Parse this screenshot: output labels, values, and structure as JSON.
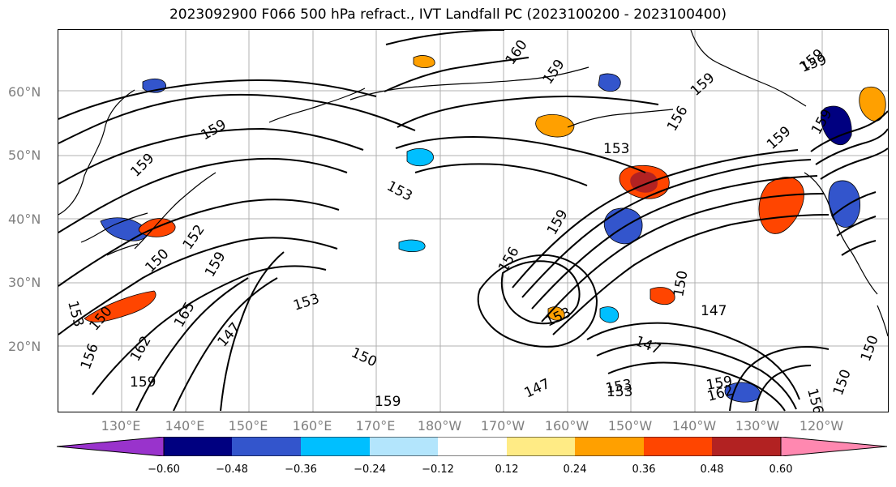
{
  "title": "2023092900 F066 500 hPa refract., IVT Landfall PC (2023100200 - 2023100400)",
  "map": {
    "type": "synoptic-map",
    "region": "North Pacific",
    "field_contours": "500 hPa refractivity",
    "field_shading": "IVT Landfall PC",
    "lat_labels": [
      "60°N",
      "50°N",
      "40°N",
      "30°N",
      "20°N"
    ],
    "lon_labels": [
      "130°E",
      "140°E",
      "150°E",
      "160°E",
      "170°E",
      "180°W",
      "170°W",
      "160°W",
      "150°W",
      "140°W",
      "130°W",
      "120°W"
    ],
    "contour_labels": [
      "160",
      "159",
      "159",
      "159",
      "159",
      "159",
      "156",
      "159",
      "153",
      "153",
      "159",
      "156",
      "150",
      "153",
      "152",
      "159",
      "153",
      "165",
      "150",
      "162",
      "156",
      "159",
      "147",
      "153",
      "150",
      "153",
      "147",
      "156",
      "147",
      "153",
      "159",
      "150",
      "150",
      "159",
      "159",
      "162",
      "147",
      "159",
      "150"
    ]
  },
  "colorbar": {
    "tick_labels": [
      "−0.60",
      "−0.48",
      "−0.36",
      "−0.24",
      "−0.12",
      "0.12",
      "0.24",
      "0.36",
      "0.48",
      "0.60"
    ],
    "colors": [
      "#9933cc",
      "#000080",
      "#3355cc",
      "#00bfff",
      "#b3e5fc",
      "#ffffff",
      "#ffeb85",
      "#ffa000",
      "#ff4500",
      "#b22222",
      "#ff88b0"
    ]
  },
  "chart_data": {
    "type": "heatmap",
    "title": "2023092900 F066 500 hPa refract., IVT Landfall PC (2023100200 - 2023100400)",
    "xlabel": "",
    "ylabel": "",
    "x_ticks": [
      "130°E",
      "140°E",
      "150°E",
      "160°E",
      "170°E",
      "180°W",
      "170°W",
      "160°W",
      "150°W",
      "140°W",
      "130°W",
      "120°W"
    ],
    "y_ticks": [
      "60°N",
      "50°N",
      "40°N",
      "30°N",
      "20°N"
    ],
    "colorbar_levels": [
      -0.6,
      -0.48,
      -0.36,
      -0.24,
      -0.12,
      0.12,
      0.24,
      0.36,
      0.48,
      0.6
    ],
    "colorbar_extend": "both",
    "contour_levels": [
      147,
      150,
      153,
      156,
      159,
      162,
      165
    ],
    "grid": true
  }
}
